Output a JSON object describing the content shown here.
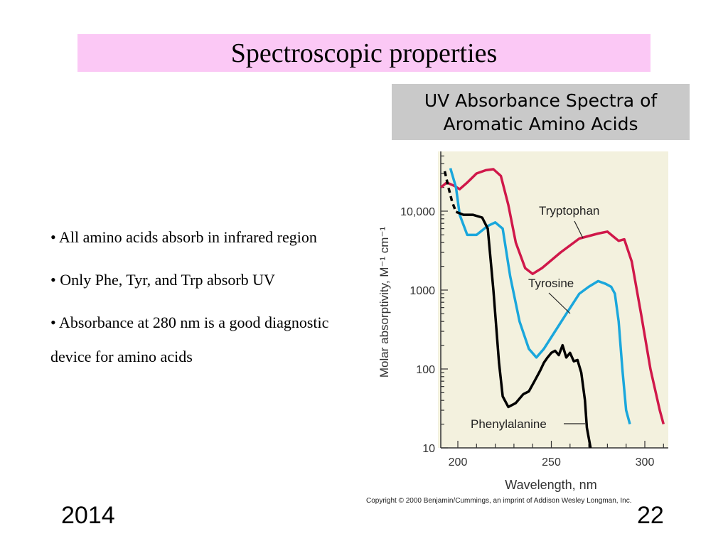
{
  "slide": {
    "title": "Spectroscopic properties",
    "caption_line1": "UV Absorbance Spectra of",
    "caption_line2": "Aromatic Amino Acids",
    "bullets": [
      "• All amino acids absorb in infrared region",
      "• Only Phe, Tyr, and Trp absorb UV",
      "• Absorbance at 280 nm is a good diagnostic device for amino acids"
    ],
    "footer_year": "2014",
    "footer_page": "22",
    "copyright": "Copyright © 2000 Benjamin/Cummings, an imprint of Addison Wesley Longman, Inc."
  },
  "colors": {
    "title_bg": "#fbc8f5",
    "caption_bg": "#c9c9c9",
    "plot_bg": "#f3f1de",
    "tryptophan": "#d0184a",
    "tyrosine": "#1aa7dc",
    "phenylalanine": "#000000"
  },
  "chart_data": {
    "type": "line",
    "xlabel": "Wavelength, nm",
    "ylabel": "Molar absorptivity, M⁻¹ cm⁻¹",
    "xlim": [
      190,
      313
    ],
    "ylim": [
      10,
      70000
    ],
    "yscale": "log",
    "x_ticks": [
      200,
      250,
      300
    ],
    "x_tick_labels": [
      "200",
      "250",
      "300"
    ],
    "y_ticks": [
      10,
      100,
      1000,
      10000
    ],
    "y_tick_labels": [
      "10",
      "100",
      "1000",
      "10,000"
    ],
    "series": [
      {
        "name": "Tryptophan",
        "color": "#d0184a",
        "points": [
          [
            191,
            20000
          ],
          [
            194,
            23000
          ],
          [
            198,
            21000
          ],
          [
            201,
            19000
          ],
          [
            205,
            23000
          ],
          [
            210,
            30000
          ],
          [
            215,
            33000
          ],
          [
            219,
            34000
          ],
          [
            223,
            28000
          ],
          [
            227,
            12000
          ],
          [
            231,
            4000
          ],
          [
            236,
            1900
          ],
          [
            240,
            1600
          ],
          [
            245,
            1900
          ],
          [
            255,
            3000
          ],
          [
            265,
            4500
          ],
          [
            275,
            5200
          ],
          [
            280,
            5500
          ],
          [
            283,
            4800
          ],
          [
            286,
            4200
          ],
          [
            289,
            4400
          ],
          [
            293,
            2300
          ],
          [
            298,
            500
          ],
          [
            303,
            100
          ],
          [
            308,
            30
          ],
          [
            310,
            20
          ]
        ]
      },
      {
        "name": "Tyrosine",
        "color": "#1aa7dc",
        "points": [
          [
            196,
            35000
          ],
          [
            199,
            20000
          ],
          [
            201,
            9000
          ],
          [
            205,
            5000
          ],
          [
            210,
            5000
          ],
          [
            216,
            6500
          ],
          [
            220,
            7200
          ],
          [
            224,
            6000
          ],
          [
            228,
            1500
          ],
          [
            233,
            400
          ],
          [
            238,
            180
          ],
          [
            242,
            140
          ],
          [
            246,
            180
          ],
          [
            252,
            300
          ],
          [
            258,
            500
          ],
          [
            265,
            900
          ],
          [
            270,
            1100
          ],
          [
            275,
            1300
          ],
          [
            279,
            1200
          ],
          [
            282,
            1100
          ],
          [
            284,
            900
          ],
          [
            286,
            400
          ],
          [
            288,
            100
          ],
          [
            290,
            30
          ],
          [
            292,
            20
          ]
        ]
      },
      {
        "name": "Phenylalanine",
        "color": "#000000",
        "dashed_until": 199,
        "points": [
          [
            193,
            32000
          ],
          [
            195,
            20000
          ],
          [
            197,
            13000
          ],
          [
            199,
            9800
          ],
          [
            203,
            9000
          ],
          [
            208,
            9000
          ],
          [
            213,
            8300
          ],
          [
            216,
            6000
          ],
          [
            219,
            1000
          ],
          [
            222,
            120
          ],
          [
            224,
            45
          ],
          [
            227,
            33
          ],
          [
            231,
            37
          ],
          [
            235,
            48
          ],
          [
            238,
            52
          ],
          [
            241,
            70
          ],
          [
            244,
            95
          ],
          [
            246,
            120
          ],
          [
            248,
            140
          ],
          [
            250,
            160
          ],
          [
            252,
            170
          ],
          [
            254,
            150
          ],
          [
            256,
            200
          ],
          [
            258,
            140
          ],
          [
            260,
            160
          ],
          [
            262,
            125
          ],
          [
            264,
            130
          ],
          [
            266,
            90
          ],
          [
            268,
            40
          ],
          [
            269,
            18
          ],
          [
            271,
            10
          ]
        ]
      }
    ],
    "annotations": [
      {
        "text": "Tryptophan",
        "series": "Tryptophan"
      },
      {
        "text": "Tyrosine",
        "series": "Tyrosine"
      },
      {
        "text": "Phenylalanine",
        "series": "Phenylalanine"
      }
    ],
    "grid": false,
    "legend": "none"
  }
}
